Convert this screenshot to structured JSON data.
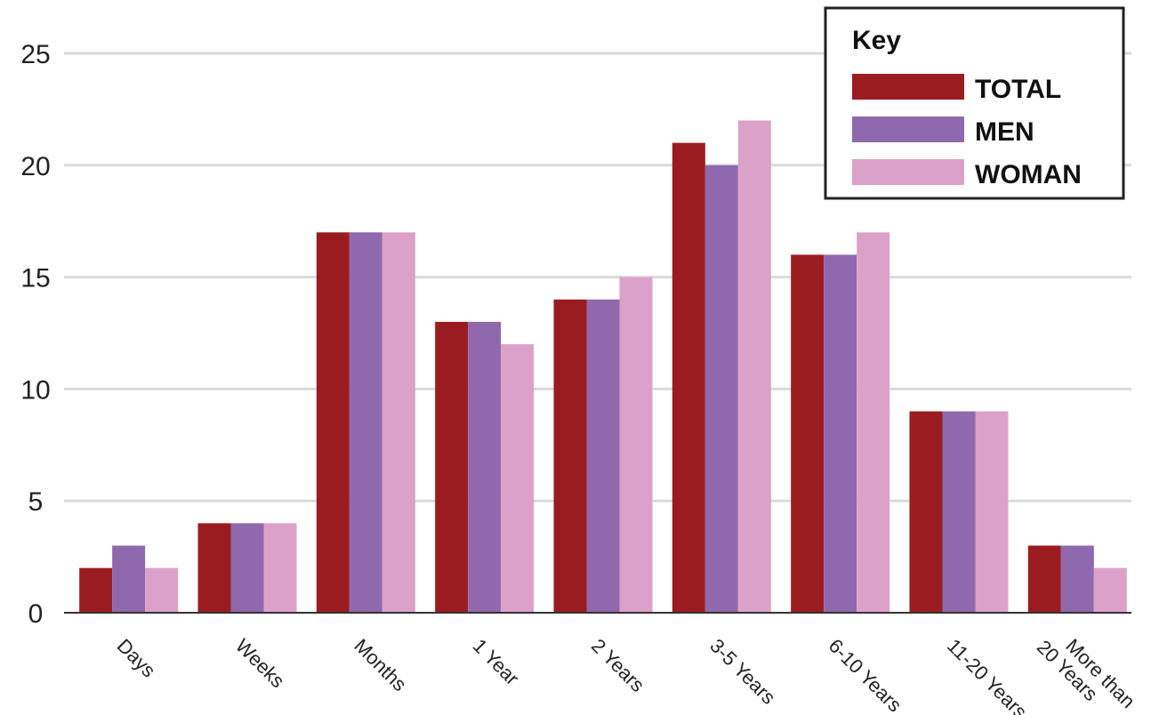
{
  "chart_data": {
    "type": "bar",
    "categories": [
      "Days",
      "Weeks",
      "Months",
      "1 Year",
      "2 Years",
      "3-5 Years",
      "6-10 Years",
      "11-20 Years",
      "More than 20 Years"
    ],
    "category_lines": [
      [
        "Days"
      ],
      [
        "Weeks"
      ],
      [
        "Months"
      ],
      [
        "1 Year"
      ],
      [
        "2 Years"
      ],
      [
        "3-5 Years"
      ],
      [
        "6-10 Years"
      ],
      [
        "11-20 Years"
      ],
      [
        "More than",
        "20 Years"
      ]
    ],
    "series": [
      {
        "name": "TOTAL",
        "color": "#9b1c20",
        "values": [
          2,
          4,
          17,
          13,
          14,
          21,
          16,
          9,
          3
        ]
      },
      {
        "name": "MEN",
        "color": "#8f68ad",
        "values": [
          3,
          4,
          17,
          13,
          14,
          20,
          16,
          9,
          3
        ]
      },
      {
        "name": "WOMAN",
        "color": "#dca1c9",
        "values": [
          2,
          4,
          17,
          12,
          15,
          22,
          17,
          9,
          2
        ]
      }
    ],
    "ylim": [
      0,
      25
    ],
    "yticks": [
      0,
      5,
      10,
      15,
      20,
      25
    ],
    "grid": true,
    "legend": {
      "title": "Key",
      "placement": "top-right"
    }
  }
}
